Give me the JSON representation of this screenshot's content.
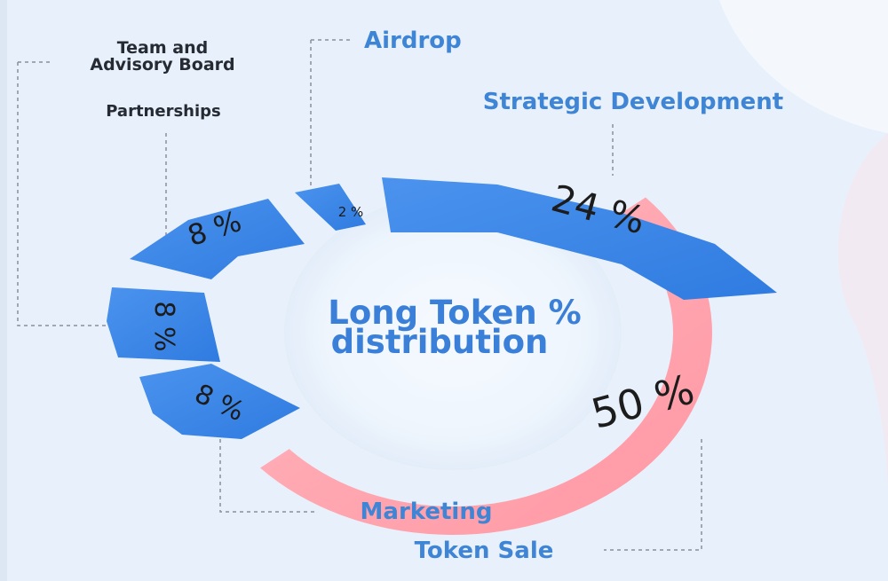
{
  "chart_data": {
    "type": "pie",
    "title": "Long Token % distribution",
    "slices": [
      {
        "label": "Token Sale",
        "value": 50,
        "value_label": "50 %",
        "color": "#ffa3ad"
      },
      {
        "label": "Strategic Development",
        "value": 24,
        "value_label": "24 %",
        "color": "#3a86e6"
      },
      {
        "label": "Airdrop",
        "value": 2,
        "value_label": "2 %",
        "color": "#3a86e6"
      },
      {
        "label": "Partnerships",
        "value": 8,
        "value_label": "8 %",
        "color": "#3a86e6"
      },
      {
        "label": "Team and Advisory Board",
        "value": 8,
        "value_label": "8 %",
        "color": "#3a86e6"
      },
      {
        "label": "Marketing",
        "value": 8,
        "value_label": "8 %",
        "color": "#3a86e6"
      }
    ]
  },
  "labels": {
    "title_line1": "Long Token %",
    "title_line2": "distribution",
    "team_line1": "Team and",
    "team_line2": "Advisory Board",
    "partnerships": "Partnerships",
    "airdrop": "Airdrop",
    "strategic": "Strategic Development",
    "marketing": "Marketing",
    "token_sale": "Token Sale"
  },
  "colors": {
    "background": "#e8f1fb",
    "blue": "#3a86e6",
    "pink": "#ffa3ad",
    "title_text": "#3a7fd8",
    "category_blue": "#3f85d6",
    "dark_label": "#1c1c1c",
    "leader": "#8a8f99"
  }
}
